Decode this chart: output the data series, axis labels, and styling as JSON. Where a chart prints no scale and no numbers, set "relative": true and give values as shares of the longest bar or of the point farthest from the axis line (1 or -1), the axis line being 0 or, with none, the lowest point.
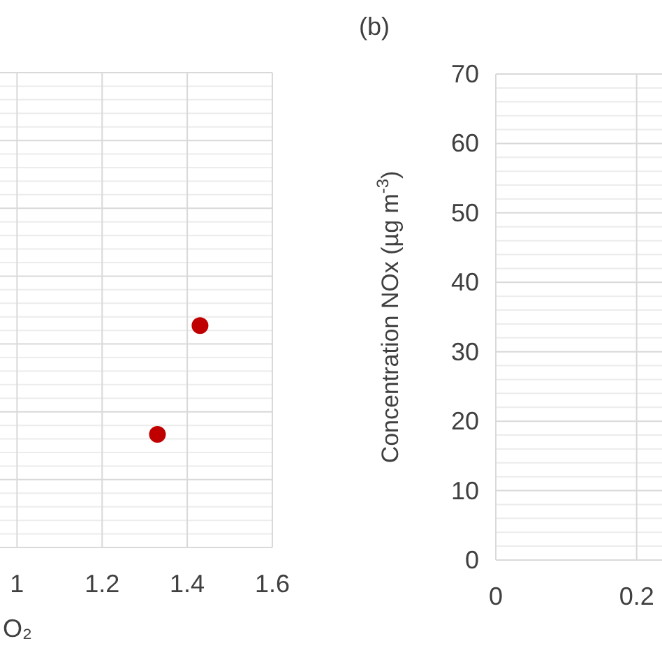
{
  "chart_data": [
    {
      "type": "scatter",
      "xlabel": "O₂",
      "relative": true,
      "x": [
        1.33,
        1.43
      ],
      "xlim": [
        0.96,
        1.6
      ],
      "xticks": [
        1,
        1.2,
        1.4,
        1.6
      ],
      "series": [
        {
          "color": "#c00000",
          "values": [
            0.51,
            1
          ]
        }
      ],
      "marker": "circle",
      "grid": true
    },
    {
      "type": "scatter",
      "title": "(b)",
      "ylabel": "Concentration  NOx (µg m$^{-3}$)",
      "xlim": [
        0,
        0.236
      ],
      "xticks": [
        0,
        0.2
      ],
      "ylim": [
        0,
        70
      ],
      "yticks": [
        0,
        10,
        20,
        30,
        40,
        50,
        60,
        70
      ],
      "grid": true
    }
  ]
}
